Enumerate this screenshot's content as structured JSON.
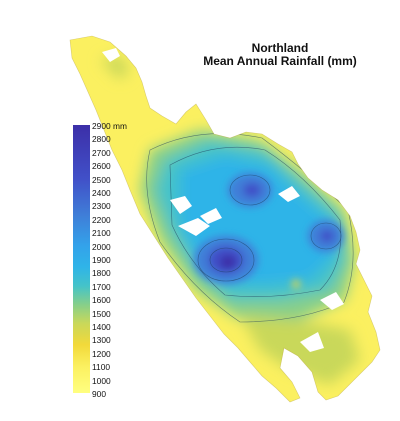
{
  "title": {
    "line1": "Northland",
    "line2": "Mean Annual Rainfall (mm)"
  },
  "legend": {
    "unit": "mm",
    "ticks": [
      "2900",
      "2800",
      "2700",
      "2600",
      "2500",
      "2400",
      "2300",
      "2200",
      "2100",
      "2000",
      "1900",
      "1800",
      "1700",
      "1600",
      "1500",
      "1400",
      "1300",
      "1200",
      "1100",
      "1000",
      "900"
    ],
    "range_mm": [
      900,
      2900
    ],
    "colors": [
      "#ffff80",
      "#fbf060",
      "#f2d93a",
      "#c9d85a",
      "#86cf8a",
      "#44c3c9",
      "#2fb4e8",
      "#33a2ea",
      "#3f7fd8",
      "#4150c8",
      "#3c2fa8"
    ]
  },
  "map": {
    "region": "Northland",
    "max_area": "west-central",
    "secondary_max": [
      "north-central",
      "east"
    ],
    "min_area": "far north peninsula and southern coast"
  }
}
